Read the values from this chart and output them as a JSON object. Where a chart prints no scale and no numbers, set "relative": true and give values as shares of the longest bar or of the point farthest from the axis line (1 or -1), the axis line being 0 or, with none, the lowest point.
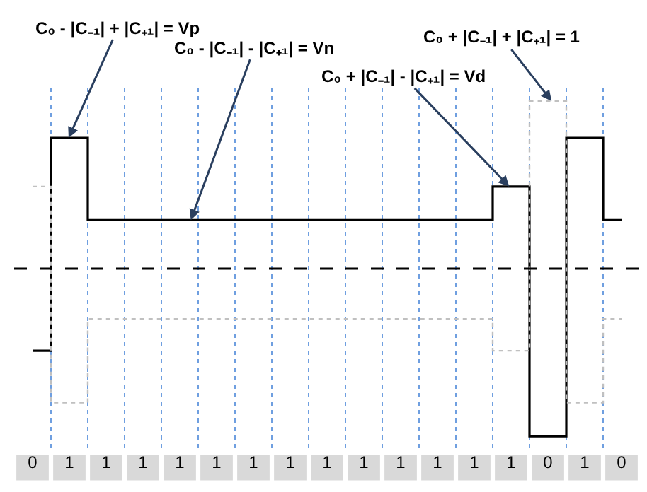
{
  "chart_data": {
    "type": "step",
    "relative": true,
    "categories": [
      "0",
      "1",
      "1",
      "1",
      "1",
      "1",
      "1",
      "1",
      "1",
      "1",
      "1",
      "1",
      "1",
      "1",
      "0",
      "1",
      "0"
    ],
    "series": [
      {
        "color": "#000000",
        "line_style": "solid",
        "values": [
          -0.49,
          0.78,
          0.29,
          0.29,
          0.29,
          0.29,
          0.29,
          0.29,
          0.29,
          0.29,
          0.29,
          0.29,
          0.29,
          0.49,
          -1,
          0.78,
          0.29
        ]
      },
      {
        "color": "#c0c0c0",
        "line_style": "dotted",
        "values": [
          0.49,
          -0.8,
          -0.3,
          -0.3,
          -0.3,
          -0.3,
          -0.3,
          -0.3,
          -0.3,
          -0.3,
          -0.3,
          -0.3,
          -0.3,
          -0.49,
          1,
          -0.8,
          -0.3
        ]
      }
    ],
    "ref_lines": [
      {
        "axis": "y",
        "value": 0,
        "color": "#000000",
        "line_style": "dashed"
      }
    ],
    "annotations": [
      "C₀ - |C₋₁| + |C₊₁| = Vp",
      "C₀ - |C₋₁| - |C₊₁| = Vn",
      "C₀ + |C₋₁| - |C₊₁| = Vd",
      "C₀ + |C₋₁| + |C₊₁| = 1"
    ],
    "grid": "x",
    "marker": "none"
  }
}
